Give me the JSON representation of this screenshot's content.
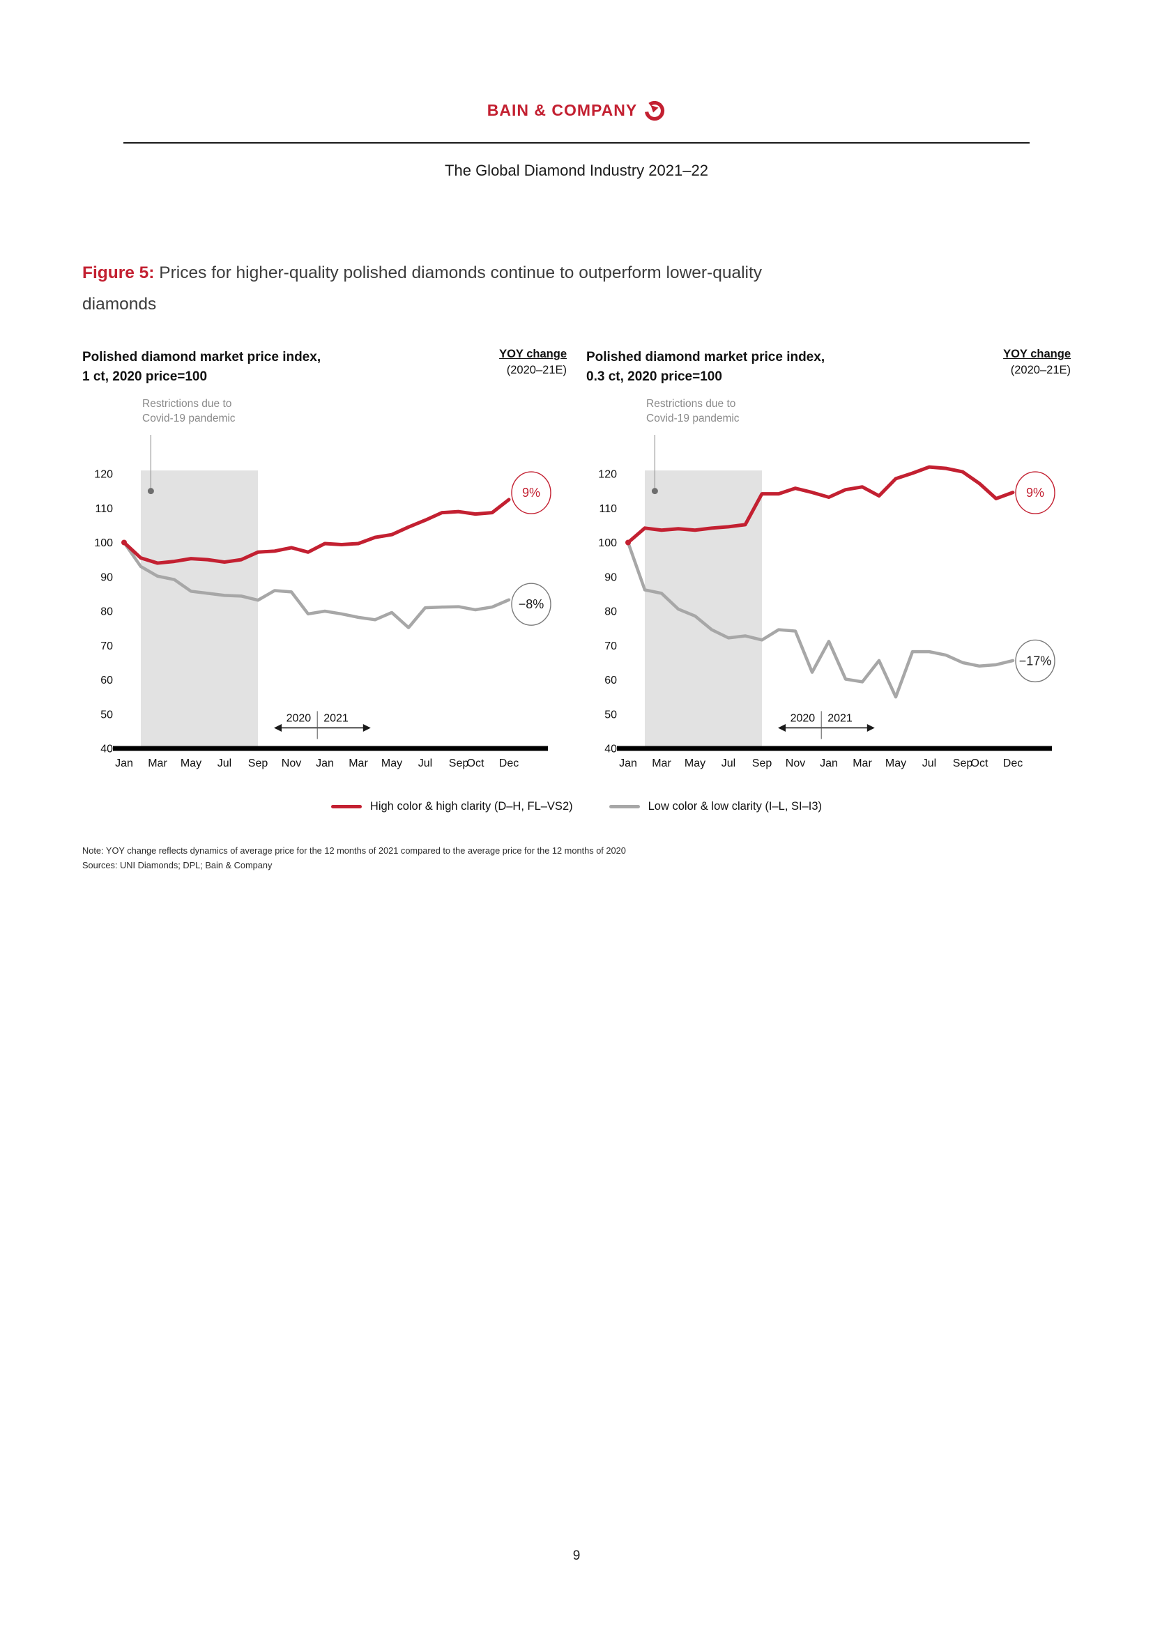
{
  "page": {
    "brand": "BAIN & COMPANY",
    "doc_title": "The Global Diamond Industry 2021–22",
    "page_number": "9"
  },
  "figure": {
    "label": "Figure 5:",
    "title_rest": " Prices for higher-quality polished diamonds continue to outperform lower-quality",
    "title_line2": "diamonds"
  },
  "colors": {
    "red": "#c32031",
    "gray": "#a7a7a7",
    "shade": "#e2e2e2",
    "axis": "#000000",
    "annotation_gray": "#8a8a8a",
    "badge_gray_stroke": "#7a7a7a",
    "badge_gray_text": "#1a1a1a"
  },
  "note": "Note: YOY change reflects dynamics of average price for the 12 months of 2021 compared to the average price for the 12 months of 2020",
  "sources": "Sources: UNI Diamonds; DPL; Bain & Company",
  "chart_data": [
    {
      "type": "line",
      "title": "Polished diamond market price index, 1 ct, 2020 price=100",
      "title_line1": "Polished diamond market price index,",
      "title_line2": "1 ct, 2020 price=100",
      "yoy_label": "YOY change",
      "yoy_period": "(2020–21E)",
      "annotation_line1": "Restrictions due to",
      "annotation_line2": "Covid-19 pandemic",
      "annotation_point_value": 115,
      "ylim": [
        40,
        120
      ],
      "y_ticks": [
        40,
        50,
        60,
        70,
        80,
        90,
        100,
        110,
        120
      ],
      "x_tick_labels": [
        "Jan",
        "Mar",
        "May",
        "Jul",
        "Sep",
        "Nov",
        "Jan",
        "Mar",
        "May",
        "Jul",
        "Sep",
        "Oct",
        "Dec"
      ],
      "x_tick_months": [
        0,
        2,
        4,
        6,
        8,
        10,
        12,
        14,
        16,
        18,
        20,
        21,
        23
      ],
      "categories": [
        "Jan 2020",
        "Feb 2020",
        "Mar 2020",
        "Apr 2020",
        "May 2020",
        "Jun 2020",
        "Jul 2020",
        "Aug 2020",
        "Sep 2020",
        "Oct 2020",
        "Nov 2020",
        "Dec 2020",
        "Jan 2021",
        "Feb 2021",
        "Mar 2021",
        "Apr 2021",
        "May 2021",
        "Jun 2021",
        "Jul 2021",
        "Aug 2021",
        "Sep 2021",
        "Oct 2021",
        "Nov 2021",
        "Dec 2021"
      ],
      "shaded_region": {
        "from": "Feb 2020",
        "to": "Sep 2020",
        "from_idx": 1,
        "to_idx": 8
      },
      "year_split": {
        "left_label": "2020",
        "right_label": "2021",
        "boundary_idx": 11.55,
        "arrow_from_idx": 9,
        "arrow_to_idx": 14.7
      },
      "series": [
        {
          "name": "High color & high clarity (D–H, FL–VS2)",
          "color": "#c32031",
          "values": [
            100,
            95.5,
            94,
            94.5,
            95.3,
            95,
            94.3,
            95,
            97.2,
            97.5,
            98.5,
            97.2,
            99.7,
            99.4,
            99.7,
            101.5,
            102.3,
            104.5,
            106.5,
            108.7,
            109,
            108.3,
            108.7,
            112.5
          ],
          "yoy_badge": "9%",
          "badge_center_value": 114.5,
          "badge_stroke": "#c32031",
          "badge_text_color": "#c32031"
        },
        {
          "name": "Low color & low clarity (I–L, SI–I3)",
          "color": "#a7a7a7",
          "values": [
            100,
            93,
            90.2,
            89.2,
            85.8,
            85.2,
            84.6,
            84.4,
            83.2,
            86,
            85.6,
            79.2,
            80,
            79.2,
            78.2,
            77.5,
            79.6,
            75.2,
            81,
            81.2,
            81.3,
            80.4,
            81.2,
            83.3
          ],
          "yoy_badge": "−8%",
          "badge_center_value": 82,
          "badge_stroke": "#7a7a7a",
          "badge_text_color": "#1a1a1a"
        }
      ]
    },
    {
      "type": "line",
      "title": "Polished diamond market price index, 0.3 ct, 2020 price=100",
      "title_line1": "Polished diamond market price index,",
      "title_line2": "0.3 ct, 2020 price=100",
      "yoy_label": "YOY change",
      "yoy_period": "(2020–21E)",
      "annotation_line1": "Restrictions due to",
      "annotation_line2": "Covid-19 pandemic",
      "annotation_point_value": 115,
      "ylim": [
        40,
        120
      ],
      "y_ticks": [
        40,
        50,
        60,
        70,
        80,
        90,
        100,
        110,
        120
      ],
      "x_tick_labels": [
        "Jan",
        "Mar",
        "May",
        "Jul",
        "Sep",
        "Nov",
        "Jan",
        "Mar",
        "May",
        "Jul",
        "Sep",
        "Oct",
        "Dec"
      ],
      "x_tick_months": [
        0,
        2,
        4,
        6,
        8,
        10,
        12,
        14,
        16,
        18,
        20,
        21,
        23
      ],
      "categories": [
        "Jan 2020",
        "Feb 2020",
        "Mar 2020",
        "Apr 2020",
        "May 2020",
        "Jun 2020",
        "Jul 2020",
        "Aug 2020",
        "Sep 2020",
        "Oct 2020",
        "Nov 2020",
        "Dec 2020",
        "Jan 2021",
        "Feb 2021",
        "Mar 2021",
        "Apr 2021",
        "May 2021",
        "Jun 2021",
        "Jul 2021",
        "Aug 2021",
        "Sep 2021",
        "Oct 2021",
        "Nov 2021",
        "Dec 2021"
      ],
      "shaded_region": {
        "from": "Feb 2020",
        "to": "Sep 2020",
        "from_idx": 1,
        "to_idx": 8
      },
      "year_split": {
        "left_label": "2020",
        "right_label": "2021",
        "boundary_idx": 11.55,
        "arrow_from_idx": 9,
        "arrow_to_idx": 14.7
      },
      "series": [
        {
          "name": "High color & high clarity (D–H, FL–VS2)",
          "color": "#c32031",
          "values": [
            100,
            104.2,
            103.6,
            104,
            103.6,
            104.2,
            104.6,
            105.2,
            114.2,
            114.2,
            115.8,
            114.6,
            113.2,
            115.4,
            116.2,
            113.6,
            118.6,
            120.2,
            122,
            121.6,
            120.6,
            117.2,
            112.8,
            114.6
          ],
          "yoy_badge": "9%",
          "badge_center_value": 114.5,
          "badge_stroke": "#c32031",
          "badge_text_color": "#c32031"
        },
        {
          "name": "Low color & low clarity (I–L, SI–I3)",
          "color": "#a7a7a7",
          "values": [
            100,
            86.2,
            85.2,
            80.6,
            78.6,
            74.6,
            72.2,
            72.8,
            71.6,
            74.6,
            74.2,
            62.2,
            71.2,
            60.2,
            59.4,
            65.6,
            55,
            68.2,
            68.2,
            67.2,
            65,
            64,
            64.4,
            65.6
          ],
          "yoy_badge": "−17%",
          "badge_center_value": 65.5,
          "badge_stroke": "#7a7a7a",
          "badge_text_color": "#1a1a1a"
        }
      ]
    }
  ]
}
